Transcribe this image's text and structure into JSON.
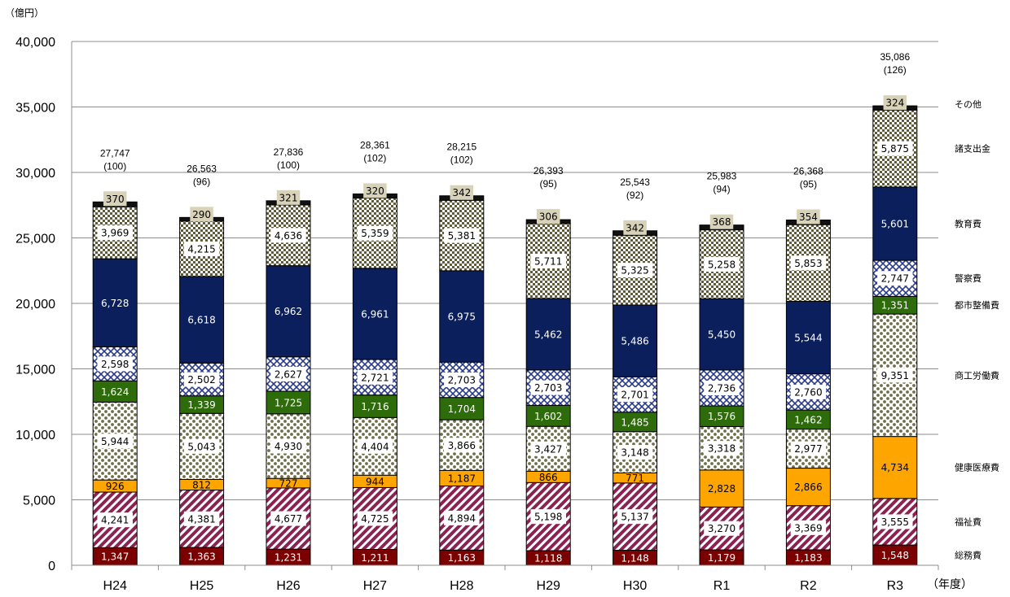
{
  "chart_data": {
    "type": "bar",
    "stacked": true,
    "ylabel": "（億円）",
    "xlabel": "（年度）",
    "ylim": [
      0,
      40000
    ],
    "yticks": [
      "0",
      "5,000",
      "10,000",
      "15,000",
      "20,000",
      "25,000",
      "30,000",
      "35,000",
      "40,000"
    ],
    "categories": [
      "H24",
      "H25",
      "H26",
      "H27",
      "H28",
      "H29",
      "H30",
      "R1",
      "R2",
      "R3"
    ],
    "totals": [
      "27,747",
      "26,563",
      "27,836",
      "28,361",
      "28,215",
      "26,393",
      "25,543",
      "25,983",
      "26,368",
      "35,086"
    ],
    "indices": [
      "(100)",
      "(96)",
      "(100)",
      "(102)",
      "(102)",
      "(95)",
      "(92)",
      "(94)",
      "(95)",
      "(126)"
    ],
    "grid": true,
    "legend_position": "right",
    "series": [
      {
        "name": "総務費",
        "color": "#7b0000",
        "pattern": "solid",
        "values": [
          1347,
          1363,
          1231,
          1211,
          1163,
          1118,
          1148,
          1179,
          1183,
          1548
        ]
      },
      {
        "name": "福祉費",
        "color": "#8b2252",
        "pattern": "diagonal",
        "values": [
          4241,
          4381,
          4677,
          4725,
          4894,
          5198,
          5137,
          3270,
          3369,
          3555
        ]
      },
      {
        "name": "健康医療費",
        "color": "#ffa500",
        "pattern": "solid",
        "values": [
          926,
          812,
          727,
          944,
          1187,
          866,
          771,
          2828,
          2866,
          4734
        ]
      },
      {
        "name": "商工労働費",
        "color": "#7a7a52",
        "pattern": "dots",
        "values": [
          5944,
          5043,
          4930,
          4404,
          3866,
          3427,
          3148,
          3318,
          2977,
          9351
        ]
      },
      {
        "name": "都市整備費",
        "color": "#2e6b0a",
        "pattern": "solid",
        "values": [
          1624,
          1339,
          1725,
          1716,
          1704,
          1602,
          1485,
          1576,
          1462,
          1351
        ]
      },
      {
        "name": "警察費",
        "color": "#1a2a7a",
        "pattern": "crosshatch",
        "values": [
          2598,
          2502,
          2627,
          2721,
          2703,
          2703,
          2701,
          2736,
          2760,
          2747
        ]
      },
      {
        "name": "教育費",
        "color": "#0a1f5c",
        "pattern": "solid",
        "values": [
          6728,
          6618,
          6962,
          6961,
          6975,
          5462,
          5486,
          5450,
          5544,
          5601
        ]
      },
      {
        "name": "諸支出金",
        "color": "#5e5a3a",
        "pattern": "checker",
        "values": [
          3969,
          4215,
          4636,
          5359,
          5381,
          5711,
          5325,
          5258,
          5853,
          5875
        ]
      },
      {
        "name": "その他",
        "color": "#111111",
        "pattern": "solid",
        "values": [
          370,
          290,
          321,
          320,
          342,
          306,
          342,
          368,
          354,
          324
        ]
      }
    ]
  }
}
